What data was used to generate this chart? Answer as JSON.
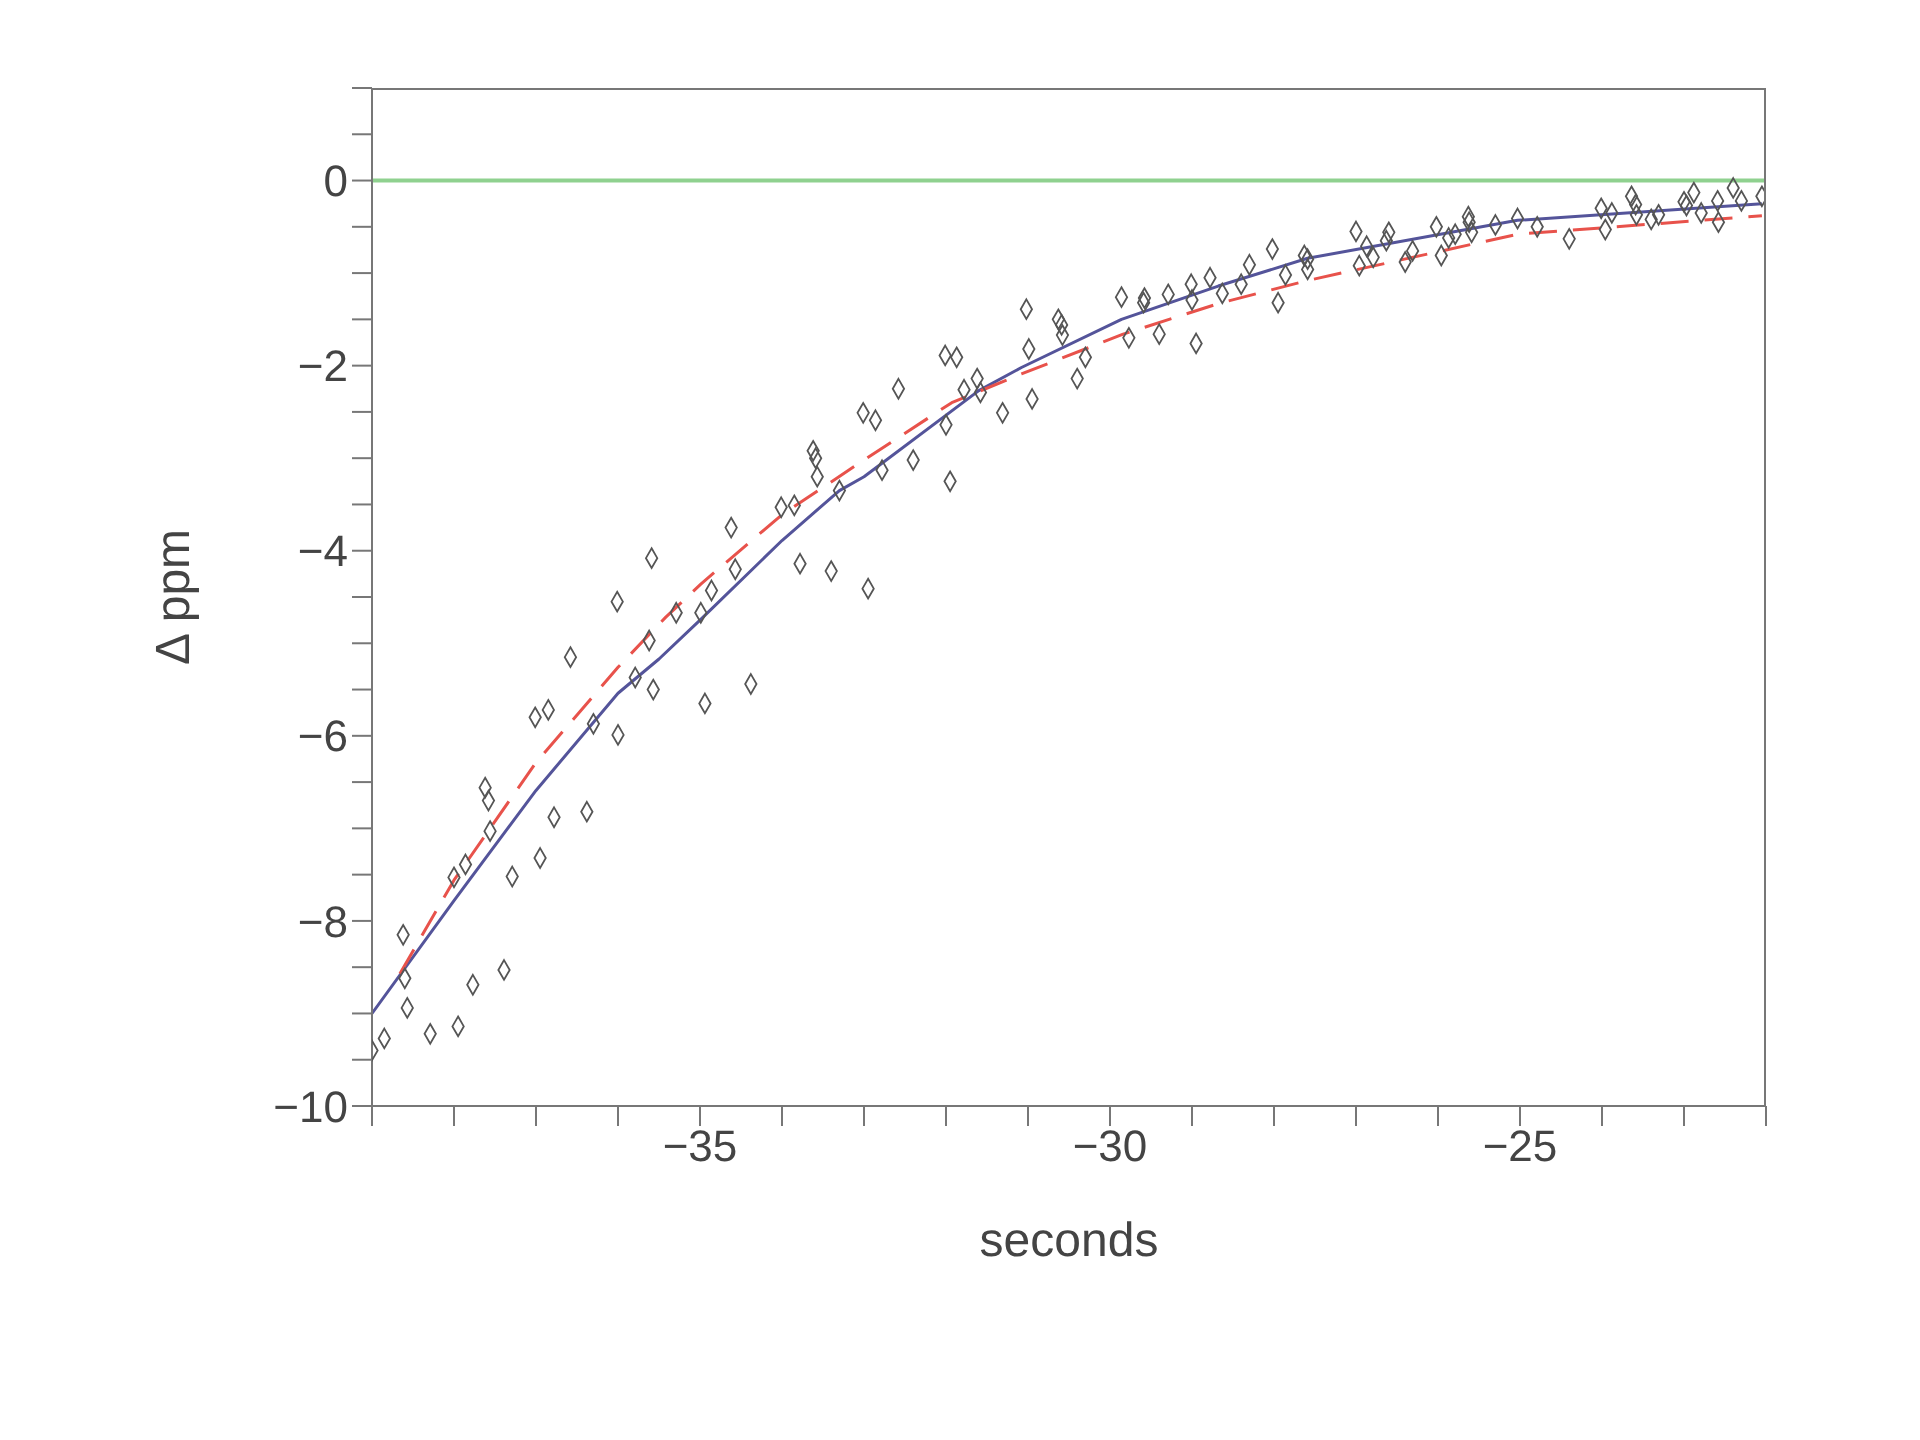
{
  "chart_data": {
    "type": "scatter",
    "xlabel": "seconds",
    "ylabel": "Δ ppm",
    "xlim": [
      -39,
      -22
    ],
    "ylim": [
      -10,
      1
    ],
    "xticks": [
      {
        "value": -39,
        "label": null
      },
      {
        "value": -38,
        "label": null
      },
      {
        "value": -37,
        "label": null
      },
      {
        "value": -36,
        "label": null
      },
      -35,
      {
        "value": -34,
        "label": null
      },
      {
        "value": -33,
        "label": null
      },
      {
        "value": -32,
        "label": null
      },
      {
        "value": -31,
        "label": null
      },
      -30,
      {
        "value": -29,
        "label": null
      },
      {
        "value": -28,
        "label": null
      },
      {
        "value": -27,
        "label": null
      },
      {
        "value": -26,
        "label": null
      },
      -25,
      {
        "value": -24,
        "label": null
      },
      {
        "value": -23,
        "label": null
      },
      {
        "value": -22,
        "label": null
      }
    ],
    "yticks": [
      -10,
      {
        "value": -9.5,
        "label": null
      },
      {
        "value": -9,
        "label": null
      },
      {
        "value": -8.5,
        "label": null
      },
      -8,
      {
        "value": -7.5,
        "label": null
      },
      {
        "value": -7,
        "label": null
      },
      {
        "value": -6.5,
        "label": null
      },
      -6,
      {
        "value": -5.5,
        "label": null
      },
      {
        "value": -5,
        "label": null
      },
      {
        "value": -4.5,
        "label": null
      },
      -4,
      {
        "value": -3.5,
        "label": null
      },
      {
        "value": -3,
        "label": null
      },
      {
        "value": -2.5,
        "label": null
      },
      -2,
      {
        "value": -1.5,
        "label": null
      },
      {
        "value": -1,
        "label": null
      },
      {
        "value": -0.5,
        "label": null
      },
      0,
      {
        "value": 0.5,
        "label": null
      },
      {
        "value": 1,
        "label": null
      }
    ],
    "grid": false,
    "legend": false,
    "ref_lines": [
      {
        "axis": "y",
        "value": 0,
        "color": "#8fd18f",
        "line_style": "solid"
      }
    ],
    "series": [
      {
        "color": "#555555",
        "marker": "diamond",
        "x": [
          -39.0,
          -38.85,
          -38.62,
          -38.6,
          -38.57,
          -38.29,
          -37.95,
          -38.0,
          -37.86,
          -37.77,
          -37.62,
          -37.58,
          -37.56,
          -37.39,
          -37.29,
          -37.01,
          -36.95,
          -36.85,
          -36.78,
          -36.58,
          -36.38,
          -36.3,
          -36.01,
          -36.0,
          -35.79,
          -35.62,
          -35.59,
          -35.57,
          -35.29,
          -34.99,
          -34.94,
          -34.86,
          -34.62,
          -34.57,
          -34.38,
          -34.01,
          -33.85,
          -33.78,
          -33.57,
          -33.4,
          -33.3,
          -32.95,
          -32.78,
          -33.62,
          -33.59,
          -33.01,
          -32.86,
          -32.58,
          -32.4,
          -32.0,
          -31.95,
          -32.01,
          -31.87,
          -31.78,
          -31.62,
          -31.58,
          -31.31,
          -31.02,
          -30.99,
          -30.95,
          -30.63,
          -30.59,
          -30.58,
          -30.4,
          -30.3,
          -29.86,
          -29.77,
          -29.59,
          -29.58,
          -29.4,
          -29.29,
          -29.01,
          -29.0,
          -28.95,
          -28.78,
          -28.63,
          -28.4,
          -28.3,
          -28.02,
          -27.95,
          -27.86,
          -27.63,
          -27.59,
          -27.59,
          -27.0,
          -26.96,
          -26.87,
          -26.79,
          -26.63,
          -26.6,
          -26.4,
          -26.31,
          -26.02,
          -25.96,
          -25.87,
          -25.79,
          -25.63,
          -25.62,
          -25.59,
          -25.3,
          -25.03,
          -24.79,
          -24.4,
          -24.01,
          -23.96,
          -23.88,
          -23.64,
          -23.59,
          -23.58,
          -23.4,
          -23.31,
          -23.0,
          -22.97,
          -22.88,
          -22.79,
          -22.59,
          -22.58,
          -22.4,
          -22.3,
          -22.05
        ],
        "values": [
          -9.4,
          -9.27,
          -8.15,
          -8.62,
          -8.94,
          -9.22,
          -9.14,
          -7.53,
          -7.39,
          -8.69,
          -6.56,
          -6.7,
          -7.03,
          -8.53,
          -7.52,
          -5.8,
          -7.32,
          -5.72,
          -6.88,
          -5.15,
          -6.82,
          -5.87,
          -4.55,
          -5.99,
          -5.37,
          -4.97,
          -4.08,
          -5.5,
          -4.67,
          -4.67,
          -5.65,
          -4.43,
          -3.75,
          -4.2,
          -5.44,
          -3.53,
          -3.51,
          -4.14,
          -3.2,
          -4.22,
          -3.35,
          -4.41,
          -3.13,
          -2.92,
          -3.0,
          -2.51,
          -2.59,
          -2.25,
          -3.02,
          -2.64,
          -3.25,
          -1.89,
          -1.91,
          -2.26,
          -2.14,
          -2.29,
          -2.51,
          -1.39,
          -1.82,
          -2.36,
          -1.5,
          -1.56,
          -1.67,
          -2.14,
          -1.91,
          -1.26,
          -1.7,
          -1.32,
          -1.27,
          -1.66,
          -1.23,
          -1.12,
          -1.29,
          -1.76,
          -1.05,
          -1.22,
          -1.12,
          -0.91,
          -0.74,
          -1.32,
          -1.02,
          -0.81,
          -0.85,
          -0.96,
          -0.55,
          -0.92,
          -0.71,
          -0.83,
          -0.65,
          -0.56,
          -0.88,
          -0.76,
          -0.5,
          -0.81,
          -0.62,
          -0.58,
          -0.39,
          -0.45,
          -0.56,
          -0.48,
          -0.41,
          -0.5,
          -0.63,
          -0.3,
          -0.53,
          -0.35,
          -0.17,
          -0.26,
          -0.37,
          -0.42,
          -0.37,
          -0.23,
          -0.27,
          -0.13,
          -0.35,
          -0.22,
          -0.45,
          -0.08,
          -0.22,
          -0.17
        ]
      },
      {
        "type": "line",
        "color": "#54549a",
        "line_style": "solid",
        "marker": "none",
        "x": [
          -39.0,
          -38.0,
          -37.0,
          -36.0,
          -35.5,
          -35.0,
          -34.0,
          -33.3,
          -33.0,
          -31.6,
          -31.08,
          -29.86,
          -28.68,
          -27.59,
          -25.03,
          -22.05
        ],
        "values": [
          -9.0,
          -7.78,
          -6.59,
          -5.54,
          -5.17,
          -4.75,
          -3.89,
          -3.35,
          -3.2,
          -2.27,
          -2.02,
          -1.5,
          -1.14,
          -0.84,
          -0.43,
          -0.25
        ]
      },
      {
        "type": "line",
        "color": "#e8524b",
        "line_style": "dashed",
        "marker": "none",
        "x": [
          -38.66,
          -38.0,
          -37.01,
          -36.0,
          -35.42,
          -34.99,
          -34.0,
          -33.0,
          -31.93,
          -31.08,
          -29.84,
          -28.68,
          -27.59,
          -25.03,
          -22.05
        ],
        "values": [
          -8.57,
          -7.56,
          -6.3,
          -5.26,
          -4.72,
          -4.36,
          -3.61,
          -3.02,
          -2.4,
          -2.09,
          -1.66,
          -1.33,
          -1.08,
          -0.58,
          -0.38
        ]
      }
    ]
  }
}
